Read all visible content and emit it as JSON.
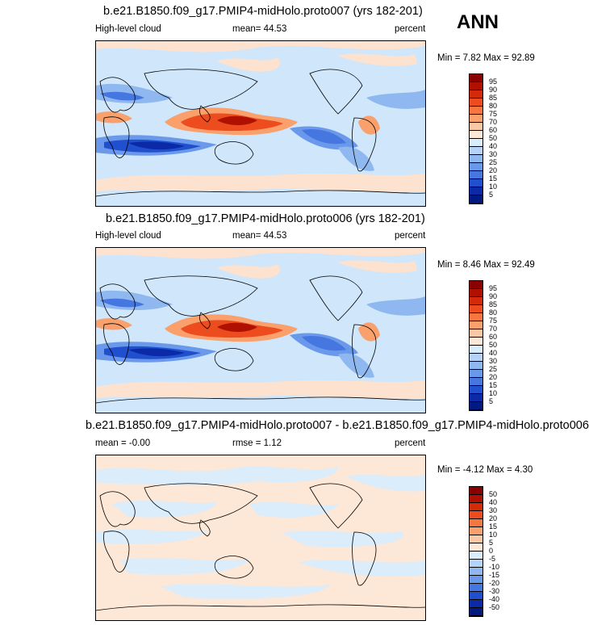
{
  "season": "ANN",
  "panels": [
    {
      "title": "b.e21.B1850.f09_g17.PMIP4-midHolo.proto007 (yrs 182-201)",
      "left_label": "High-level cloud",
      "mean_label": "mean=  44.53",
      "right_label": "percent",
      "minmax": "Min =   7.82 Max =  92.89",
      "colorbar": {
        "labels": [
          "95",
          "90",
          "85",
          "80",
          "75",
          "70",
          "60",
          "50",
          "40",
          "30",
          "25",
          "20",
          "15",
          "10",
          "5"
        ],
        "colors": [
          "#8b0000",
          "#b01000",
          "#d52a0a",
          "#ec4c1e",
          "#f5773f",
          "#f9a06c",
          "#fbc8a6",
          "#fde7d6",
          "#dbecfb",
          "#b4d3f6",
          "#8fb8f1",
          "#6a98ea",
          "#4676e0",
          "#2150cf",
          "#0a2aa8",
          "#001a80"
        ]
      }
    },
    {
      "title": "b.e21.B1850.f09_g17.PMIP4-midHolo.proto006 (yrs 182-201)",
      "left_label": "High-level cloud",
      "mean_label": "mean=  44.53",
      "right_label": "percent",
      "minmax": "Min =   8.46 Max =  92.49",
      "colorbar": {
        "labels": [
          "95",
          "90",
          "85",
          "80",
          "75",
          "70",
          "60",
          "50",
          "40",
          "30",
          "25",
          "20",
          "15",
          "10",
          "5"
        ],
        "colors": [
          "#8b0000",
          "#b01000",
          "#d52a0a",
          "#ec4c1e",
          "#f5773f",
          "#f9a06c",
          "#fbc8a6",
          "#fde7d6",
          "#dbecfb",
          "#b4d3f6",
          "#8fb8f1",
          "#6a98ea",
          "#4676e0",
          "#2150cf",
          "#0a2aa8",
          "#001a80"
        ]
      }
    },
    {
      "title": "b.e21.B1850.f09_g17.PMIP4-midHolo.proto007 - b.e21.B1850.f09_g17.PMIP4-midHolo.proto006",
      "left_label": "mean =  -0.00",
      "mean_label": "rmse =   1.12",
      "right_label": "percent",
      "minmax": "Min =  -4.12 Max =   4.30",
      "colorbar": {
        "labels": [
          "50",
          "40",
          "30",
          "20",
          "15",
          "10",
          "5",
          "0",
          "-5",
          "-10",
          "-15",
          "-20",
          "-30",
          "-40",
          "-50"
        ],
        "colors": [
          "#8b0000",
          "#b01000",
          "#d52a0a",
          "#ec4c1e",
          "#f5773f",
          "#f9a06c",
          "#fbc8a6",
          "#fde7d6",
          "#dbecfb",
          "#b4d3f6",
          "#8fb8f1",
          "#6a98ea",
          "#4676e0",
          "#2150cf",
          "#0a2aa8",
          "#001a80"
        ]
      }
    }
  ]
}
